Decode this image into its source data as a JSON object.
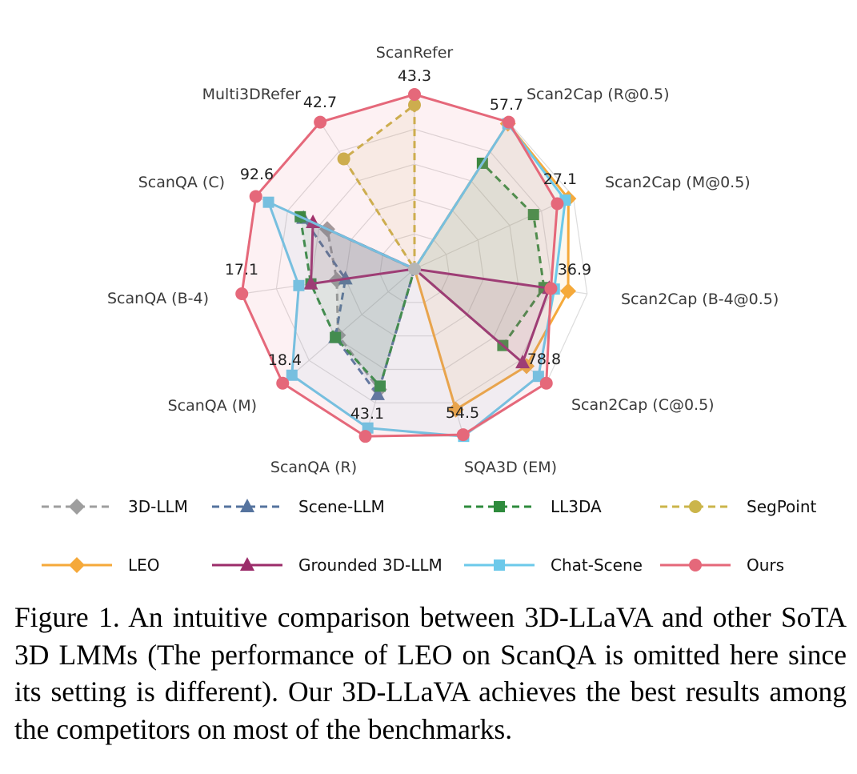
{
  "chart_data": {
    "type": "radar",
    "axes": [
      "ScanRefer",
      "Scan2Cap (R@0.5)",
      "Scan2Cap (M@0.5)",
      "Scan2Cap (B-4@0.5)",
      "Scan2Cap (C@0.5)",
      "SQA3D (EM)",
      "ScanQA (R)",
      "ScanQA (M)",
      "ScanQA (B-4)",
      "ScanQA (C)",
      "Multi3DRefer"
    ],
    "axis_max_labels": [
      "43.3",
      "57.7",
      "27.1",
      "36.9",
      "78.8",
      "54.5",
      "43.1",
      "18.4",
      "17.1",
      "92.6",
      "42.7"
    ],
    "value_unit": "fraction of best result on each axis (radial position)",
    "series": [
      {
        "name": "3D-LLM",
        "color": "#9e9e9e",
        "dash": true,
        "marker": "diamond",
        "values": [
          null,
          null,
          null,
          null,
          null,
          null,
          0.72,
          0.58,
          0.45,
          0.55,
          null
        ]
      },
      {
        "name": "Scene-LLM",
        "color": "#55739e",
        "dash": true,
        "marker": "triangle",
        "values": [
          null,
          null,
          null,
          null,
          null,
          null,
          0.75,
          0.6,
          0.4,
          0.7,
          null
        ]
      },
      {
        "name": "LL3DA",
        "color": "#2e8b3c",
        "dash": true,
        "marker": "square",
        "values": [
          null,
          0.72,
          0.75,
          0.75,
          0.67,
          null,
          0.7,
          0.6,
          0.6,
          0.72,
          null
        ]
      },
      {
        "name": "SegPoint",
        "color": "#cbb54a",
        "dash": true,
        "marker": "circle",
        "values": [
          0.94,
          null,
          null,
          null,
          null,
          null,
          null,
          null,
          null,
          null,
          0.75
        ]
      },
      {
        "name": "LEO",
        "color": "#f5a93a",
        "dash": false,
        "marker": "diamond",
        "values": [
          null,
          0.99,
          0.97,
          0.89,
          0.85,
          0.84,
          null,
          null,
          null,
          null,
          null
        ]
      },
      {
        "name": "Grounded 3D-LLM",
        "color": "#9b2c6a",
        "dash": false,
        "marker": "triangle",
        "values": [
          null,
          null,
          null,
          0.78,
          0.82,
          null,
          null,
          null,
          0.6,
          0.64,
          null
        ]
      },
      {
        "name": "Chat-Scene",
        "color": "#6cc9ea",
        "dash": false,
        "marker": "square",
        "values": [
          null,
          0.99,
          0.95,
          0.81,
          0.94,
          1.0,
          0.95,
          0.93,
          0.67,
          0.92,
          null
        ]
      },
      {
        "name": "Ours",
        "color": "#e5687a",
        "dash": false,
        "marker": "circle",
        "values": [
          1.0,
          1.0,
          0.9,
          0.79,
          1.0,
          0.99,
          1.0,
          1.0,
          1.0,
          1.0,
          1.0
        ]
      }
    ],
    "grid": true,
    "legend_position": "bottom"
  },
  "legend": [
    {
      "label": "3D-LLM"
    },
    {
      "label": "Scene-LLM"
    },
    {
      "label": "LL3DA"
    },
    {
      "label": "SegPoint"
    },
    {
      "label": "LEO"
    },
    {
      "label": "Grounded 3D-LLM"
    },
    {
      "label": "Chat-Scene"
    },
    {
      "label": "Ours"
    }
  ],
  "caption": "Figure 1.  An intuitive comparison between 3D-LLaVA and other SoTA 3D LMMs (The performance of LEO on ScanQA is omitted here since its setting is different).  Our 3D-LLaVA achieves the best results among the competitors on most of the benchmarks."
}
